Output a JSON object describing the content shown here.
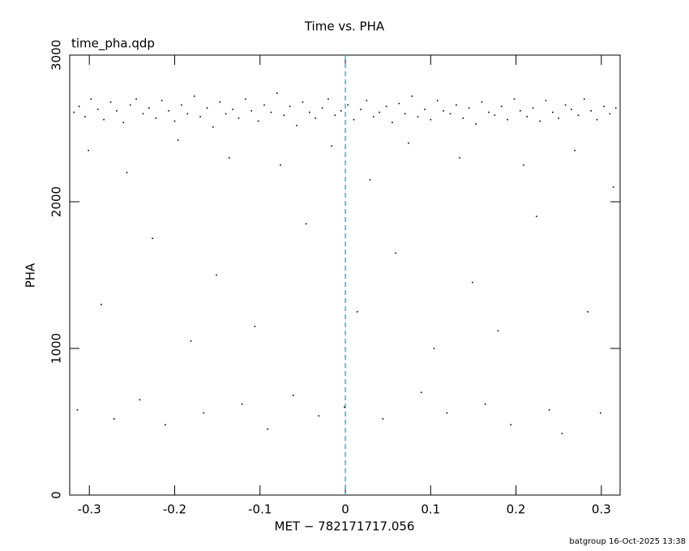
{
  "chart_data": {
    "type": "scatter",
    "title": "Time vs. PHA",
    "subtitle": "time_pha.qdp",
    "x_label": "MET − 782171717.056",
    "y_label": "PHA",
    "footer": "batgroup 16-Oct-2025 13:38",
    "color": "#000000",
    "vline": 0,
    "vline_color": "#1a9aaa",
    "xlim": [
      -0.323,
      0.322
    ],
    "ylim": [
      0,
      3000
    ],
    "xticks": [
      -0.3,
      -0.2,
      -0.1,
      0,
      0.1,
      0.2,
      0.3
    ],
    "yticks": [
      0,
      1000,
      2000,
      3000
    ],
    "x": [
      -0.318,
      -0.312,
      -0.305,
      -0.298,
      -0.29,
      -0.283,
      -0.275,
      -0.268,
      -0.26,
      -0.252,
      -0.245,
      -0.237,
      -0.23,
      -0.222,
      -0.215,
      -0.207,
      -0.2,
      -0.192,
      -0.185,
      -0.177,
      -0.17,
      -0.162,
      -0.155,
      -0.147,
      -0.14,
      -0.132,
      -0.125,
      -0.117,
      -0.11,
      -0.102,
      -0.095,
      -0.087,
      -0.08,
      -0.072,
      -0.065,
      -0.057,
      -0.05,
      -0.042,
      -0.035,
      -0.027,
      -0.02,
      -0.012,
      -0.005,
      0.003,
      0.01,
      0.018,
      0.025,
      0.033,
      0.04,
      0.048,
      0.055,
      0.063,
      0.07,
      0.078,
      0.085,
      0.093,
      0.1,
      0.108,
      0.115,
      0.123,
      0.13,
      0.138,
      0.145,
      0.153,
      0.16,
      0.168,
      0.175,
      0.183,
      0.19,
      0.198,
      0.205,
      0.213,
      0.22,
      0.228,
      0.235,
      0.243,
      0.25,
      0.258,
      0.265,
      0.273,
      0.28,
      0.288,
      0.295,
      0.303,
      0.31,
      0.317,
      -0.314,
      -0.301,
      -0.286,
      -0.271,
      -0.256,
      -0.241,
      -0.226,
      -0.211,
      -0.196,
      -0.181,
      -0.166,
      -0.151,
      -0.136,
      -0.121,
      -0.106,
      -0.091,
      -0.076,
      -0.061,
      -0.046,
      -0.031,
      -0.016,
      -0.001,
      0.014,
      0.029,
      0.044,
      0.059,
      0.074,
      0.089,
      0.104,
      0.119,
      0.134,
      0.149,
      0.164,
      0.179,
      0.194,
      0.209,
      0.224,
      0.239,
      0.254,
      0.269,
      0.284,
      0.299,
      0.314
    ],
    "y": [
      2610,
      2650,
      2580,
      2700,
      2630,
      2560,
      2680,
      2620,
      2540,
      2660,
      2700,
      2600,
      2640,
      2570,
      2690,
      2620,
      2550,
      2660,
      2600,
      2720,
      2580,
      2640,
      2510,
      2680,
      2600,
      2630,
      2570,
      2700,
      2620,
      2550,
      2660,
      2610,
      2740,
      2590,
      2650,
      2520,
      2680,
      2610,
      2570,
      2640,
      2700,
      2590,
      2620,
      2660,
      2560,
      2630,
      2690,
      2580,
      2610,
      2650,
      2540,
      2670,
      2600,
      2720,
      2580,
      2630,
      2560,
      2690,
      2620,
      2600,
      2660,
      2570,
      2640,
      2530,
      2680,
      2610,
      2590,
      2650,
      2560,
      2700,
      2620,
      2580,
      2640,
      2550,
      2690,
      2610,
      2570,
      2660,
      2630,
      2590,
      2700,
      2620,
      2560,
      2650,
      2600,
      2640,
      580,
      2350,
      1300,
      520,
      2200,
      650,
      1750,
      480,
      2420,
      1050,
      560,
      1500,
      2300,
      620,
      1150,
      450,
      2250,
      680,
      1850,
      540,
      2380,
      600,
      1250,
      2150,
      520,
      1650,
      2400,
      700,
      1000,
      560,
      2300,
      1450,
      620,
      1120,
      480,
      2250,
      1900,
      580,
      420,
      2350,
      1250,
      560,
      2100
    ]
  }
}
